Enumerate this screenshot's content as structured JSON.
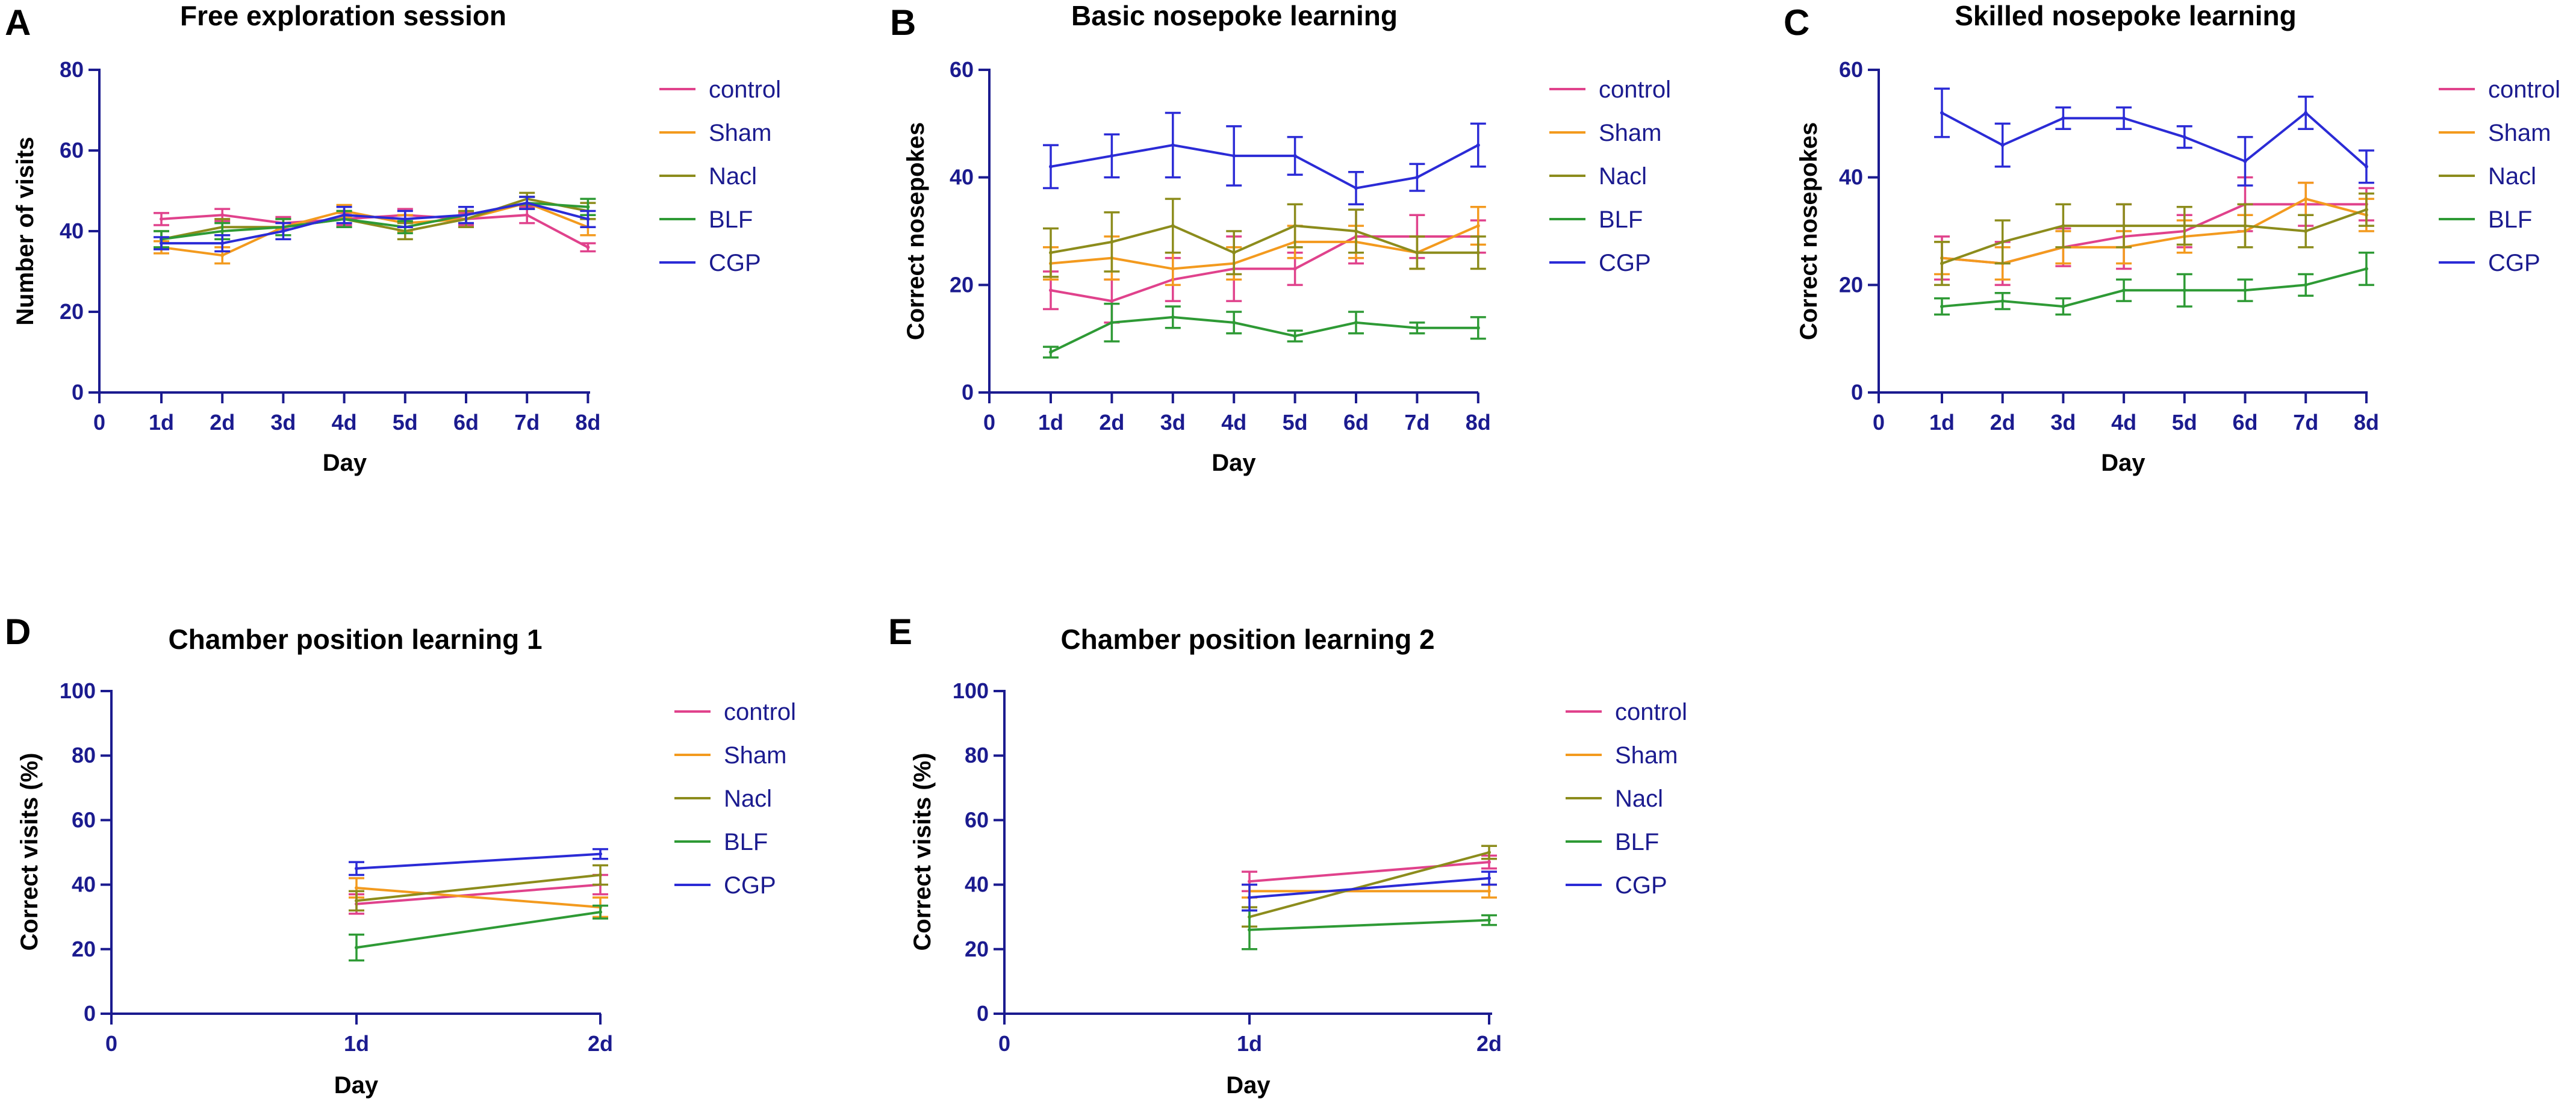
{
  "colors": {
    "control": "#e0428c",
    "Sham": "#f39a1e",
    "Nacl": "#8c8c1c",
    "BLF": "#2e9a35",
    "CGP": "#2b2bd6",
    "axis": "#1b1b8f"
  },
  "chart_data": [
    {
      "panel": "A",
      "type": "line",
      "title": "Free exploration session",
      "xlabel": "Day",
      "ylabel": "Number of visits",
      "categories": [
        "1d",
        "2d",
        "3d",
        "4d",
        "5d",
        "6d",
        "7d",
        "8d"
      ],
      "origin_label": "0",
      "ylim": [
        0,
        80
      ],
      "yticks": [
        0,
        20,
        40,
        60,
        80
      ],
      "legend": [
        "control",
        "Sham",
        "Nacl",
        "BLF",
        "CGP"
      ],
      "series": [
        {
          "name": "control",
          "values": [
            43,
            44,
            42,
            43,
            44,
            43,
            44,
            36
          ],
          "err": [
            1.5,
            1.5,
            1.5,
            1.5,
            1.5,
            1.5,
            2,
            1
          ]
        },
        {
          "name": "Sham",
          "values": [
            36,
            34,
            41,
            45,
            42,
            43,
            47,
            41
          ],
          "err": [
            1.5,
            2,
            2,
            1.5,
            2,
            2,
            1.5,
            2
          ]
        },
        {
          "name": "Nacl",
          "values": [
            38,
            41,
            41,
            43,
            40,
            43,
            48,
            45
          ],
          "err": [
            2,
            2,
            2,
            2,
            2,
            2,
            1.5,
            2
          ]
        },
        {
          "name": "BLF",
          "values": [
            38,
            40,
            41,
            43,
            41,
            44,
            47,
            46
          ],
          "err": [
            2,
            2,
            2,
            2,
            1.5,
            2,
            1.5,
            2
          ]
        },
        {
          "name": "CGP",
          "values": [
            37,
            37,
            40,
            44,
            43,
            44,
            47,
            43
          ],
          "err": [
            1.5,
            2,
            2,
            2,
            2,
            2,
            1.5,
            2
          ]
        }
      ]
    },
    {
      "panel": "B",
      "type": "line",
      "title": "Basic nosepoke learning",
      "xlabel": "Day",
      "ylabel": "Correct nosepokes",
      "categories": [
        "1d",
        "2d",
        "3d",
        "4d",
        "5d",
        "6d",
        "7d",
        "8d"
      ],
      "origin_label": "0",
      "ylim": [
        0,
        60
      ],
      "yticks": [
        0,
        20,
        40,
        60
      ],
      "legend": [
        "control",
        "Sham",
        "Nacl",
        "BLF",
        "CGP"
      ],
      "series": [
        {
          "name": "control",
          "values": [
            19,
            17,
            21,
            23,
            23,
            29,
            29,
            29
          ],
          "err": [
            3.5,
            4,
            4,
            6,
            3,
            5,
            4,
            3
          ]
        },
        {
          "name": "Sham",
          "values": [
            24,
            25,
            23,
            24,
            28,
            28,
            26,
            31
          ],
          "err": [
            3,
            4,
            3,
            3,
            3,
            3,
            3,
            3.5
          ]
        },
        {
          "name": "Nacl",
          "values": [
            26,
            28,
            31,
            26,
            31,
            30,
            26,
            26
          ],
          "err": [
            4.5,
            5.5,
            5,
            4,
            4,
            4,
            3,
            3
          ]
        },
        {
          "name": "BLF",
          "values": [
            7.5,
            13,
            14,
            13,
            10.5,
            13,
            12,
            12
          ],
          "err": [
            1,
            3.5,
            2,
            2,
            1,
            2,
            1,
            2
          ]
        },
        {
          "name": "CGP",
          "values": [
            42,
            44,
            46,
            44,
            44,
            38,
            40,
            46
          ],
          "err": [
            4,
            4,
            6,
            5.5,
            3.5,
            3,
            2.5,
            4
          ]
        }
      ]
    },
    {
      "panel": "C",
      "type": "line",
      "title": "Skilled nosepoke learning",
      "xlabel": "Day",
      "ylabel": "Correct nosepokes",
      "categories": [
        "1d",
        "2d",
        "3d",
        "4d",
        "5d",
        "6d",
        "7d",
        "8d"
      ],
      "origin_label": "0",
      "ylim": [
        0,
        60
      ],
      "yticks": [
        0,
        20,
        40,
        60
      ],
      "legend": [
        "control",
        "Sham",
        "Nacl",
        "BLF",
        "CGP"
      ],
      "series": [
        {
          "name": "control",
          "values": [
            25,
            24,
            27,
            29,
            30,
            35,
            35,
            35
          ],
          "err": [
            4,
            4,
            3.5,
            6,
            3,
            5,
            4,
            3
          ]
        },
        {
          "name": "Sham",
          "values": [
            25,
            24,
            27,
            27,
            29,
            30,
            36,
            33
          ],
          "err": [
            3,
            3,
            3,
            3,
            3,
            3,
            3,
            3
          ]
        },
        {
          "name": "Nacl",
          "values": [
            24,
            28,
            31,
            31,
            31,
            31,
            30,
            34
          ],
          "err": [
            4,
            4,
            4,
            4,
            3.5,
            4,
            3,
            3
          ]
        },
        {
          "name": "BLF",
          "values": [
            16,
            17,
            16,
            19,
            19,
            19,
            20,
            23
          ],
          "err": [
            1.5,
            1.5,
            1.5,
            2,
            3,
            2,
            2,
            3
          ]
        },
        {
          "name": "CGP",
          "values": [
            52,
            46,
            51,
            51,
            47.5,
            43,
            52,
            42
          ],
          "err": [
            4.5,
            4,
            2,
            2,
            2,
            4.5,
            3,
            3
          ]
        }
      ]
    },
    {
      "panel": "D",
      "type": "line",
      "title": "Chamber position learning 1",
      "xlabel": "Day",
      "ylabel": "Correct visits (%)",
      "categories": [
        "1d",
        "2d"
      ],
      "origin_label": "0",
      "ylim": [
        0,
        100
      ],
      "yticks": [
        0,
        20,
        40,
        60,
        80,
        100
      ],
      "legend": [
        "control",
        "Sham",
        "Nacl",
        "BLF",
        "CGP"
      ],
      "series": [
        {
          "name": "control",
          "values": [
            34,
            40
          ],
          "err": [
            3,
            3
          ]
        },
        {
          "name": "Sham",
          "values": [
            39,
            33
          ],
          "err": [
            3,
            3
          ]
        },
        {
          "name": "Nacl",
          "values": [
            35,
            43
          ],
          "err": [
            3,
            3
          ]
        },
        {
          "name": "BLF",
          "values": [
            20.5,
            31.5
          ],
          "err": [
            4,
            2
          ]
        },
        {
          "name": "CGP",
          "values": [
            45,
            49.5
          ],
          "err": [
            2,
            1.5
          ]
        }
      ]
    },
    {
      "panel": "E",
      "type": "line",
      "title": "Chamber position learning 2",
      "xlabel": "Day",
      "ylabel": "Correct visits (%)",
      "categories": [
        "1d",
        "2d"
      ],
      "origin_label": "0",
      "ylim": [
        0,
        100
      ],
      "yticks": [
        0,
        20,
        40,
        60,
        80,
        100
      ],
      "legend": [
        "control",
        "Sham",
        "Nacl",
        "BLF",
        "CGP"
      ],
      "series": [
        {
          "name": "control",
          "values": [
            41,
            47
          ],
          "err": [
            3,
            2
          ]
        },
        {
          "name": "Sham",
          "values": [
            38,
            38
          ],
          "err": [
            2,
            2
          ]
        },
        {
          "name": "Nacl",
          "values": [
            30,
            50
          ],
          "err": [
            3,
            2
          ]
        },
        {
          "name": "BLF",
          "values": [
            26,
            29
          ],
          "err": [
            6,
            1.5
          ]
        },
        {
          "name": "CGP",
          "values": [
            36,
            42
          ],
          "err": [
            4,
            2
          ]
        }
      ]
    }
  ]
}
